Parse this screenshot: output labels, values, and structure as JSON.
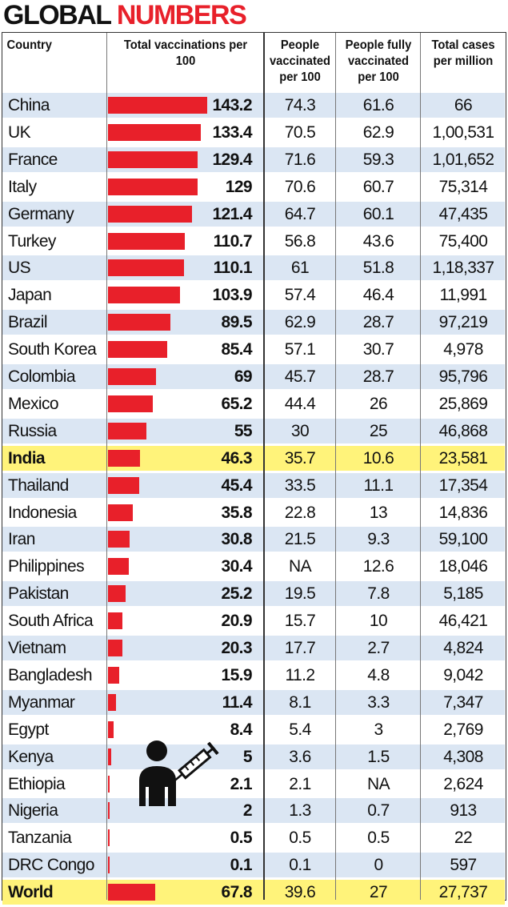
{
  "title": {
    "part1": "GLOBAL ",
    "part2": "NUMBERS"
  },
  "colors": {
    "accent": "#e8202a",
    "row_shade": "#dbe6f3",
    "highlight": "#fff37a"
  },
  "headers": {
    "country": "Country",
    "total": "Total vaccinations per 100",
    "people_vaccinated": "People vaccinated per 100",
    "fully_vaccinated": "People fully vaccinated per 100",
    "cases": "Total cases per million"
  },
  "icon": "person-vaccine-syringe-icon",
  "chart_data": {
    "type": "table",
    "bar_column": "total",
    "highlight_rows": [
      "India",
      "World"
    ],
    "rows": [
      {
        "country": "China",
        "total": "143.2",
        "pv": "74.3",
        "fv": "61.6",
        "cases": "66"
      },
      {
        "country": "UK",
        "total": "133.4",
        "pv": "70.5",
        "fv": "62.9",
        "cases": "1,00,531"
      },
      {
        "country": "France",
        "total": "129.4",
        "pv": "71.6",
        "fv": "59.3",
        "cases": "1,01,652"
      },
      {
        "country": "Italy",
        "total": "129",
        "pv": "70.6",
        "fv": "60.7",
        "cases": "75,314"
      },
      {
        "country": "Germany",
        "total": "121.4",
        "pv": "64.7",
        "fv": "60.1",
        "cases": "47,435"
      },
      {
        "country": "Turkey",
        "total": "110.7",
        "pv": "56.8",
        "fv": "43.6",
        "cases": "75,400"
      },
      {
        "country": "US",
        "total": "110.1",
        "pv": "61",
        "fv": "51.8",
        "cases": "1,18,337"
      },
      {
        "country": "Japan",
        "total": "103.9",
        "pv": "57.4",
        "fv": "46.4",
        "cases": "11,991"
      },
      {
        "country": "Brazil",
        "total": "89.5",
        "pv": "62.9",
        "fv": "28.7",
        "cases": "97,219"
      },
      {
        "country": "South Korea",
        "total": "85.4",
        "pv": "57.1",
        "fv": "30.7",
        "cases": "4,978"
      },
      {
        "country": "Colombia",
        "total": "69",
        "pv": "45.7",
        "fv": "28.7",
        "cases": "95,796"
      },
      {
        "country": "Mexico",
        "total": "65.2",
        "pv": "44.4",
        "fv": "26",
        "cases": "25,869"
      },
      {
        "country": "Russia",
        "total": "55",
        "pv": "30",
        "fv": "25",
        "cases": "46,868"
      },
      {
        "country": "India",
        "total": "46.3",
        "pv": "35.7",
        "fv": "10.6",
        "cases": "23,581"
      },
      {
        "country": "Thailand",
        "total": "45.4",
        "pv": "33.5",
        "fv": "11.1",
        "cases": "17,354"
      },
      {
        "country": "Indonesia",
        "total": "35.8",
        "pv": "22.8",
        "fv": "13",
        "cases": "14,836"
      },
      {
        "country": "Iran",
        "total": "30.8",
        "pv": "21.5",
        "fv": "9.3",
        "cases": "59,100"
      },
      {
        "country": "Philippines",
        "total": "30.4",
        "pv": "NA",
        "fv": "12.6",
        "cases": "18,046"
      },
      {
        "country": "Pakistan",
        "total": "25.2",
        "pv": "19.5",
        "fv": "7.8",
        "cases": "5,185"
      },
      {
        "country": "South Africa",
        "total": "20.9",
        "pv": "15.7",
        "fv": "10",
        "cases": "46,421"
      },
      {
        "country": "Vietnam",
        "total": "20.3",
        "pv": "17.7",
        "fv": "2.7",
        "cases": "4,824"
      },
      {
        "country": "Bangladesh",
        "total": "15.9",
        "pv": "11.2",
        "fv": "4.8",
        "cases": "9,042"
      },
      {
        "country": "Myanmar",
        "total": "11.4",
        "pv": "8.1",
        "fv": "3.3",
        "cases": "7,347"
      },
      {
        "country": "Egypt",
        "total": "8.4",
        "pv": "5.4",
        "fv": "3",
        "cases": "2,769"
      },
      {
        "country": "Kenya",
        "total": "5",
        "pv": "3.6",
        "fv": "1.5",
        "cases": "4,308"
      },
      {
        "country": "Ethiopia",
        "total": "2.1",
        "pv": "2.1",
        "fv": "NA",
        "cases": "2,624"
      },
      {
        "country": "Nigeria",
        "total": "2",
        "pv": "1.3",
        "fv": "0.7",
        "cases": "913"
      },
      {
        "country": "Tanzania",
        "total": "0.5",
        "pv": "0.5",
        "fv": "0.5",
        "cases": "22"
      },
      {
        "country": "DRC Congo",
        "total": "0.1",
        "pv": "0.1",
        "fv": "0",
        "cases": "597"
      },
      {
        "country": "World",
        "total": "67.8",
        "pv": "39.6",
        "fv": "27",
        "cases": "27,737"
      }
    ]
  }
}
